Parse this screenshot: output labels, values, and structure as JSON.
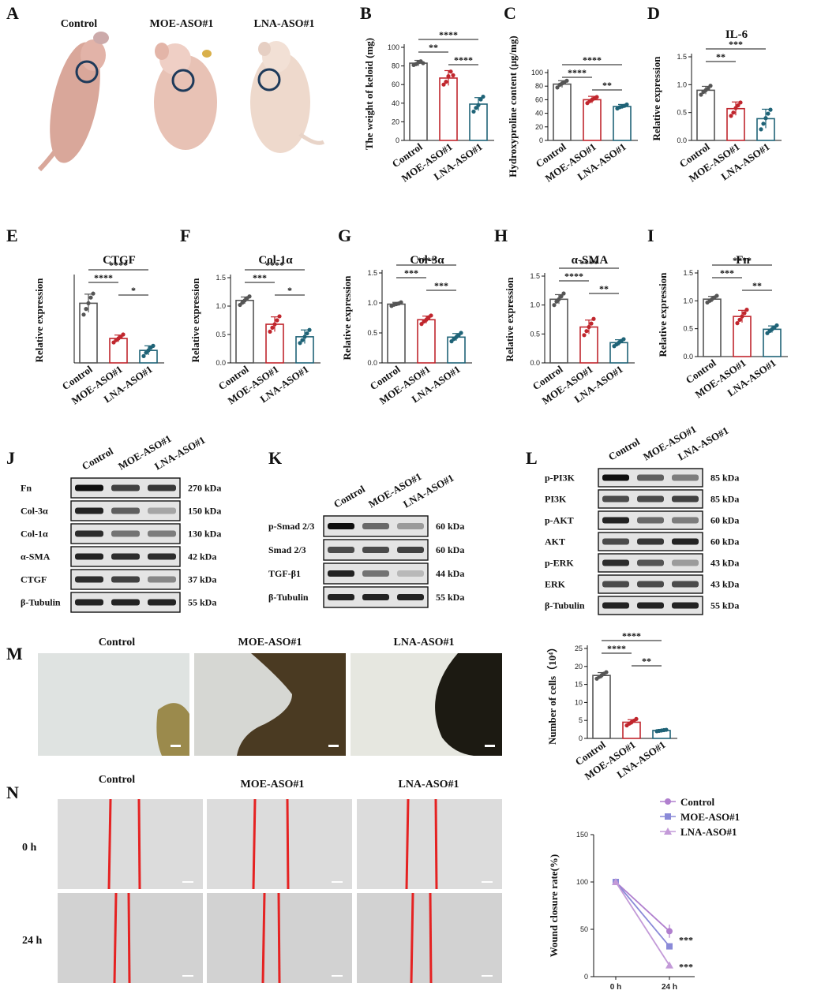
{
  "colors": {
    "control": "#555555",
    "moe": "#c0262d",
    "lna": "#1f6377",
    "line_control": "#b07fce",
    "line_moe": "#8a8ad8",
    "line_lna": "#c39ad8",
    "annotation": "#1e3a5a",
    "wound_line": "#e52222"
  },
  "panel_labels": [
    "A",
    "B",
    "C",
    "D",
    "E",
    "F",
    "G",
    "H",
    "I",
    "J",
    "K",
    "L",
    "M",
    "N"
  ],
  "panel_a": {
    "groups": [
      "Control",
      "MOE-ASO#1",
      "LNA-ASO#1"
    ],
    "icon": "mouse-photo"
  },
  "categories": [
    "Control",
    "MOE-ASO#1",
    "LNA-ASO#1"
  ],
  "chart_data": [
    {
      "id": "B",
      "type": "bar",
      "title": "",
      "ylabel": "The weight of keloid (mg)",
      "categories": [
        "Control",
        "MOE-ASO#1",
        "LNA-ASO#1"
      ],
      "values": [
        83,
        67,
        39
      ],
      "errors": [
        3,
        8,
        7
      ],
      "ylim": [
        0,
        100
      ],
      "yticks": [
        0,
        20,
        40,
        60,
        80,
        100
      ],
      "points": [
        [
          81,
          82,
          84,
          85,
          83
        ],
        [
          60,
          63,
          69,
          74,
          70
        ],
        [
          31,
          35,
          38,
          44,
          47
        ]
      ],
      "significance": [
        {
          "from": 0,
          "to": 1,
          "label": "**"
        },
        {
          "from": 1,
          "to": 2,
          "label": "****"
        },
        {
          "from": 0,
          "to": 2,
          "label": "****"
        }
      ]
    },
    {
      "id": "C",
      "type": "bar",
      "title": "",
      "ylabel": "Hydroxyproline content (μg/mg)",
      "categories": [
        "Control",
        "MOE-ASO#1",
        "LNA-ASO#1"
      ],
      "values": [
        83,
        60,
        50
      ],
      "errors": [
        5,
        5,
        3
      ],
      "ylim": [
        0,
        100
      ],
      "yticks": [
        0,
        20,
        40,
        60,
        80,
        100
      ],
      "points": [
        [
          78,
          82,
          84,
          86,
          88
        ],
        [
          55,
          58,
          60,
          62,
          64
        ],
        [
          47,
          49,
          50,
          51,
          53
        ]
      ],
      "significance": [
        {
          "from": 0,
          "to": 1,
          "label": "****"
        },
        {
          "from": 1,
          "to": 2,
          "label": "**"
        },
        {
          "from": 0,
          "to": 2,
          "label": "****"
        }
      ]
    },
    {
      "id": "D",
      "type": "bar",
      "title": "IL-6",
      "ylabel": "Relative expression",
      "categories": [
        "Control",
        "MOE-ASO#1",
        "LNA-ASO#1"
      ],
      "values": [
        0.9,
        0.57,
        0.39
      ],
      "errors": [
        0.07,
        0.12,
        0.17
      ],
      "ylim": [
        0,
        1.5
      ],
      "yticks": [
        0.0,
        0.5,
        1.0,
        1.5
      ],
      "points": [
        [
          0.82,
          0.87,
          0.9,
          0.93,
          0.98
        ],
        [
          0.44,
          0.5,
          0.58,
          0.63,
          0.68
        ],
        [
          0.2,
          0.3,
          0.4,
          0.48,
          0.55
        ]
      ],
      "significance": [
        {
          "from": 0,
          "to": 1,
          "label": "**"
        },
        {
          "from": 0,
          "to": 2,
          "label": "***"
        }
      ]
    },
    {
      "id": "E",
      "type": "bar",
      "title": "CTGF",
      "ylabel": "Relative expression",
      "categories": [
        "Control",
        "MOE-ASO#1",
        "LNA-ASO#1"
      ],
      "values": [
        1.05,
        0.43,
        0.22
      ],
      "errors": [
        0.16,
        0.06,
        0.08
      ],
      "ylim": [
        0,
        1.5
      ],
      "yticks": [],
      "points": [
        [
          0.85,
          0.95,
          1.05,
          1.15,
          1.22
        ],
        [
          0.36,
          0.4,
          0.43,
          0.46,
          0.5
        ],
        [
          0.12,
          0.18,
          0.22,
          0.27,
          0.3
        ]
      ],
      "significance": [
        {
          "from": 0,
          "to": 1,
          "label": "****"
        },
        {
          "from": 1,
          "to": 2,
          "label": "*"
        },
        {
          "from": 0,
          "to": 2,
          "label": "****"
        }
      ]
    },
    {
      "id": "F",
      "type": "bar",
      "title": "Col-1α",
      "ylabel": "Relative expression",
      "categories": [
        "Control",
        "MOE-ASO#1",
        "LNA-ASO#1"
      ],
      "values": [
        1.1,
        0.68,
        0.46
      ],
      "errors": [
        0.06,
        0.13,
        0.12
      ],
      "ylim": [
        0,
        1.5
      ],
      "yticks": [
        0.0,
        0.5,
        1.0,
        1.5
      ],
      "points": [
        [
          1.02,
          1.06,
          1.1,
          1.14,
          1.17
        ],
        [
          0.55,
          0.62,
          0.68,
          0.75,
          0.82
        ],
        [
          0.35,
          0.4,
          0.46,
          0.52,
          0.58
        ]
      ],
      "significance": [
        {
          "from": 0,
          "to": 1,
          "label": "***"
        },
        {
          "from": 1,
          "to": 2,
          "label": "*"
        },
        {
          "from": 0,
          "to": 2,
          "label": "****"
        }
      ]
    },
    {
      "id": "G",
      "type": "bar",
      "title": "Col-3α",
      "ylabel": "Relative expression",
      "categories": [
        "Control",
        "MOE-ASO#1",
        "LNA-ASO#1"
      ],
      "values": [
        0.98,
        0.72,
        0.43
      ],
      "errors": [
        0.03,
        0.06,
        0.06
      ],
      "ylim": [
        0,
        1.5
      ],
      "yticks": [
        0.0,
        0.5,
        1.0,
        1.5
      ],
      "points": [
        [
          0.95,
          0.97,
          0.98,
          0.99,
          1.01
        ],
        [
          0.65,
          0.69,
          0.72,
          0.76,
          0.79
        ],
        [
          0.36,
          0.4,
          0.43,
          0.46,
          0.5
        ]
      ],
      "significance": [
        {
          "from": 0,
          "to": 1,
          "label": "***"
        },
        {
          "from": 1,
          "to": 2,
          "label": "***"
        },
        {
          "from": 0,
          "to": 2,
          "label": "****"
        }
      ]
    },
    {
      "id": "H",
      "type": "bar",
      "title": "α-SMA",
      "ylabel": "Relative expression",
      "categories": [
        "Control",
        "MOE-ASO#1",
        "LNA-ASO#1"
      ],
      "values": [
        1.1,
        0.62,
        0.35
      ],
      "errors": [
        0.08,
        0.12,
        0.05
      ],
      "ylim": [
        0,
        1.5
      ],
      "yticks": [
        0.0,
        0.5,
        1.0,
        1.5
      ],
      "points": [
        [
          1.0,
          1.06,
          1.1,
          1.15,
          1.2
        ],
        [
          0.48,
          0.55,
          0.62,
          0.68,
          0.76
        ],
        [
          0.29,
          0.32,
          0.35,
          0.38,
          0.41
        ]
      ],
      "significance": [
        {
          "from": 0,
          "to": 1,
          "label": "****"
        },
        {
          "from": 1,
          "to": 2,
          "label": "**"
        },
        {
          "from": 0,
          "to": 2,
          "label": "****"
        }
      ]
    },
    {
      "id": "I",
      "type": "bar",
      "title": "Fn",
      "ylabel": "Relative expression",
      "categories": [
        "Control",
        "MOE-ASO#1",
        "LNA-ASO#1"
      ],
      "values": [
        1.03,
        0.72,
        0.49
      ],
      "errors": [
        0.05,
        0.11,
        0.06
      ],
      "ylim": [
        0,
        1.5
      ],
      "yticks": [
        0.0,
        0.5,
        1.0,
        1.5
      ],
      "points": [
        [
          0.97,
          1.0,
          1.03,
          1.06,
          1.09
        ],
        [
          0.6,
          0.66,
          0.72,
          0.78,
          0.84
        ],
        [
          0.42,
          0.46,
          0.49,
          0.52,
          0.56
        ]
      ],
      "significance": [
        {
          "from": 0,
          "to": 1,
          "label": "***"
        },
        {
          "from": 1,
          "to": 2,
          "label": "**"
        },
        {
          "from": 0,
          "to": 2,
          "label": "****"
        }
      ]
    },
    {
      "id": "M",
      "type": "bar",
      "title": "",
      "ylabel": "Number of cells（10⁴）",
      "categories": [
        "Control",
        "MOE-ASO#1",
        "LNA-ASO#1"
      ],
      "values": [
        17.5,
        4.5,
        2.2
      ],
      "errors": [
        0.8,
        0.7,
        0.3
      ],
      "ylim": [
        0,
        25
      ],
      "yticks": [
        0,
        5,
        10,
        15,
        20,
        25
      ],
      "points": [
        [
          16.6,
          17.1,
          17.5,
          18.0,
          18.4
        ],
        [
          3.6,
          4.1,
          4.5,
          4.9,
          5.4
        ],
        [
          2.0,
          2.1,
          2.2,
          2.3,
          2.4
        ]
      ],
      "significance": [
        {
          "from": 0,
          "to": 1,
          "label": "****"
        },
        {
          "from": 1,
          "to": 2,
          "label": "**"
        },
        {
          "from": 0,
          "to": 2,
          "label": "****"
        }
      ]
    },
    {
      "id": "N",
      "type": "line",
      "title": "",
      "ylabel": "Wound closure rate(%)",
      "x": [
        "0 h",
        "24 h"
      ],
      "ylim": [
        0,
        150
      ],
      "yticks": [
        0,
        50,
        100,
        150
      ],
      "legend": "top-right",
      "series": [
        {
          "name": "Control",
          "values": [
            100,
            48
          ],
          "errors": [
            2,
            7
          ],
          "marker": "circle"
        },
        {
          "name": "MOE-ASO#1",
          "values": [
            100,
            32
          ],
          "errors": [
            2,
            3
          ],
          "marker": "square"
        },
        {
          "name": "LNA-ASO#1",
          "values": [
            100,
            12
          ],
          "errors": [
            2,
            1
          ],
          "marker": "triangle"
        }
      ],
      "annotations": [
        "***",
        "***"
      ]
    }
  ],
  "blots": {
    "J": {
      "headers": [
        "Control",
        "MOE-ASO#1",
        "LNA-ASO#1"
      ],
      "rows": [
        {
          "label": "Fn",
          "kda": "270 kDa",
          "intensity": [
            1.0,
            0.75,
            0.8
          ]
        },
        {
          "label": "Col-3α",
          "kda": "150 kDa",
          "intensity": [
            0.9,
            0.6,
            0.25
          ]
        },
        {
          "label": "Col-1α",
          "kda": "130 kDa",
          "intensity": [
            0.85,
            0.5,
            0.45
          ]
        },
        {
          "label": "α-SMA",
          "kda": "42 kDa",
          "intensity": [
            0.9,
            0.85,
            0.85
          ]
        },
        {
          "label": "CTGF",
          "kda": "37 kDa",
          "intensity": [
            0.85,
            0.75,
            0.4
          ]
        },
        {
          "label": "β-Tubulin",
          "kda": "55 kDa",
          "intensity": [
            0.9,
            0.9,
            0.9
          ]
        }
      ]
    },
    "K": {
      "headers": [
        "Control",
        "MOE-ASO#1",
        "LNA-ASO#1"
      ],
      "rows": [
        {
          "label": "p-Smad 2/3",
          "kda": "60 kDa",
          "intensity": [
            1.0,
            0.55,
            0.3
          ]
        },
        {
          "label": "Smad 2/3",
          "kda": "60 kDa",
          "intensity": [
            0.7,
            0.7,
            0.75
          ]
        },
        {
          "label": "TGF-β1",
          "kda": "44 kDa",
          "intensity": [
            0.9,
            0.5,
            0.15
          ]
        },
        {
          "label": "β-Tubulin",
          "kda": "55 kDa",
          "intensity": [
            0.9,
            0.9,
            0.9
          ]
        }
      ]
    },
    "L": {
      "headers": [
        "Control",
        "MOE-ASO#1",
        "LNA-ASO#1"
      ],
      "rows": [
        {
          "label": "p-PI3K",
          "kda": "85 kDa",
          "intensity": [
            1.0,
            0.6,
            0.45
          ]
        },
        {
          "label": "PI3K",
          "kda": "85 kDa",
          "intensity": [
            0.7,
            0.7,
            0.75
          ]
        },
        {
          "label": "p-AKT",
          "kda": "60 kDa",
          "intensity": [
            0.9,
            0.55,
            0.45
          ]
        },
        {
          "label": "AKT",
          "kda": "60 kDa",
          "intensity": [
            0.7,
            0.8,
            0.9
          ]
        },
        {
          "label": "p-ERK",
          "kda": "43 kDa",
          "intensity": [
            0.85,
            0.65,
            0.3
          ]
        },
        {
          "label": "ERK",
          "kda": "43 kDa",
          "intensity": [
            0.7,
            0.7,
            0.7
          ]
        },
        {
          "label": "β-Tubulin",
          "kda": "55 kDa",
          "intensity": [
            0.9,
            0.9,
            0.9
          ]
        }
      ]
    }
  },
  "panel_m": {
    "headers": [
      "Control",
      "MOE-ASO#1",
      "LNA-ASO#1"
    ]
  },
  "panel_n": {
    "headers": [
      "Control",
      "MOE-ASO#1",
      "LNA-ASO#1"
    ],
    "rows": [
      "0 h",
      "24 h"
    ]
  }
}
